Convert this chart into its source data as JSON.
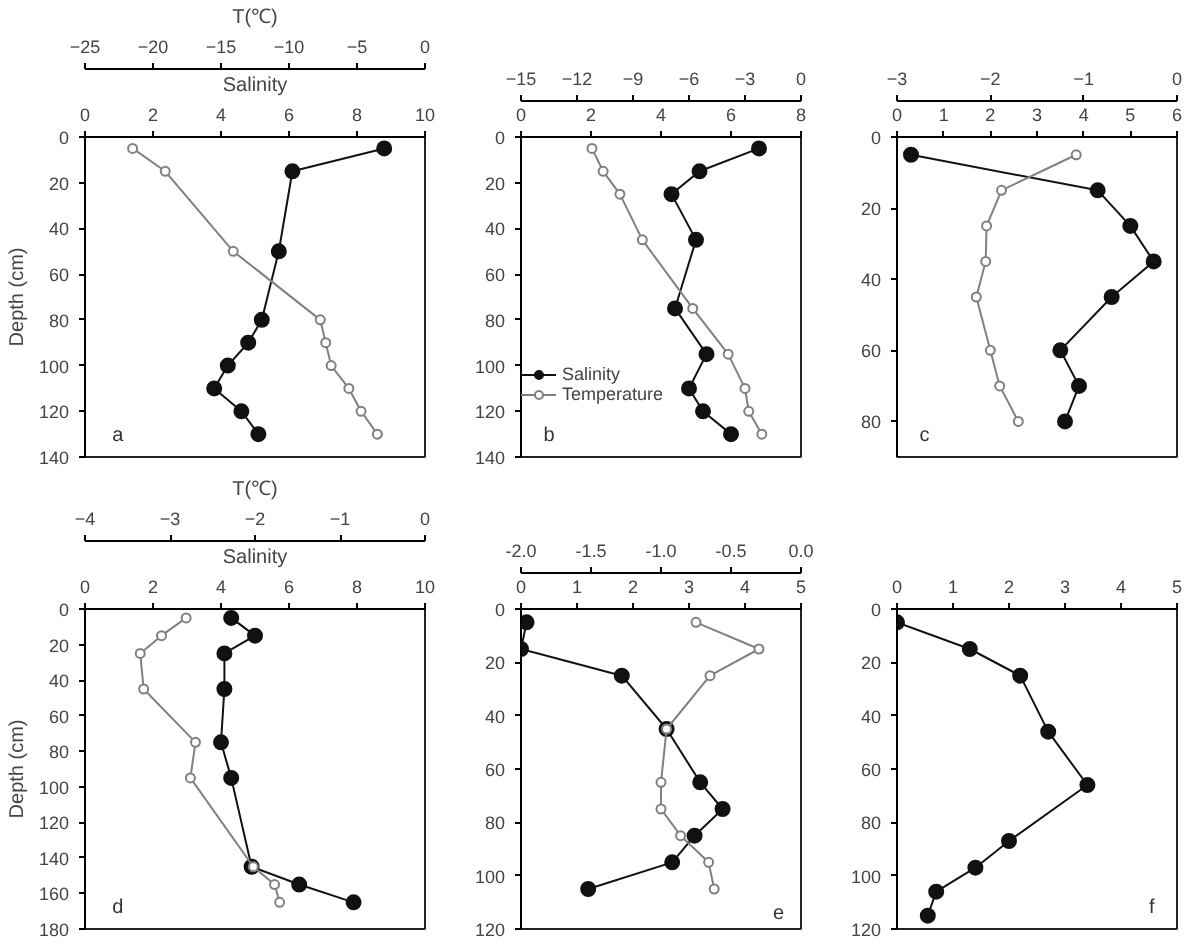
{
  "chart_data": [
    {
      "type": "line",
      "marker": "circle",
      "legend": false,
      "x2label": "T(℃)",
      "xlabel": "Salinity",
      "ylabel": "Depth (cm)",
      "xlim": [
        0,
        10
      ],
      "xticks": [
        0,
        2,
        4,
        6,
        8,
        10
      ],
      "x2lim": [
        -25,
        0
      ],
      "x2ticks": [
        -25,
        -20,
        -15,
        -10,
        -5,
        0
      ],
      "ylim": [
        140,
        0
      ],
      "yticks": [
        0,
        20,
        40,
        60,
        80,
        100,
        120,
        140
      ],
      "annotations": [
        "a"
      ],
      "series": [
        {
          "color": "#111111",
          "x": [
            8.8,
            6.1,
            5.7,
            5.2,
            4.8,
            4.2,
            3.8,
            4.6,
            5.1
          ],
          "values": [
            5,
            15,
            50,
            80,
            90,
            100,
            110,
            120,
            130
          ]
        },
        {
          "color": "#808080",
          "axis": "x2",
          "x": [
            -21.5,
            -19.1,
            -14.1,
            -7.7,
            -7.3,
            -6.9,
            -5.6,
            -4.7,
            -3.5
          ],
          "values": [
            5,
            15,
            50,
            80,
            90,
            100,
            110,
            120,
            130
          ]
        }
      ]
    },
    {
      "type": "line",
      "marker": "circle",
      "legend": "bottom left",
      "xlim": [
        0,
        8
      ],
      "xticks": [
        0,
        2,
        4,
        6,
        8
      ],
      "x2lim": [
        -15,
        0
      ],
      "x2ticks": [
        -15,
        -12,
        -9,
        -6,
        -3,
        0
      ],
      "ylim": [
        140,
        0
      ],
      "yticks": [
        0,
        20,
        40,
        60,
        80,
        100,
        120,
        140
      ],
      "annotations": [
        "b"
      ],
      "series": [
        {
          "name": "Salinity",
          "color": "#111111",
          "x": [
            6.8,
            5.1,
            4.3,
            5.0,
            4.4,
            5.3,
            4.8,
            5.2,
            6.0
          ],
          "values": [
            5,
            15,
            25,
            45,
            75,
            95,
            110,
            120,
            130
          ]
        },
        {
          "name": "Temperature",
          "color": "#808080",
          "axis": "x2",
          "x": [
            -11.2,
            -10.6,
            -9.7,
            -8.5,
            -5.8,
            -3.9,
            -3.0,
            -2.8,
            -2.1
          ],
          "values": [
            5,
            15,
            25,
            45,
            75,
            95,
            110,
            120,
            130
          ]
        }
      ]
    },
    {
      "type": "line",
      "marker": "circle",
      "legend": false,
      "xlim": [
        0,
        6
      ],
      "xticks": [
        0,
        1,
        2,
        3,
        4,
        5,
        6
      ],
      "x2lim": [
        -3,
        0
      ],
      "x2ticks": [
        -3,
        -2,
        -1,
        0
      ],
      "ylim": [
        90,
        0
      ],
      "yticks": [
        0,
        20,
        40,
        60,
        80
      ],
      "annotations": [
        "c"
      ],
      "series": [
        {
          "color": "#111111",
          "x": [
            0.3,
            4.3,
            5.0,
            5.5,
            4.6,
            3.5,
            3.9,
            3.6
          ],
          "values": [
            5,
            15,
            25,
            35,
            45,
            60,
            70,
            80
          ]
        },
        {
          "color": "#808080",
          "axis": "x2",
          "x": [
            -1.08,
            -1.88,
            -2.04,
            -2.05,
            -2.15,
            -2.0,
            -1.9,
            -1.7
          ],
          "values": [
            5,
            15,
            25,
            35,
            45,
            60,
            70,
            80
          ]
        }
      ]
    },
    {
      "type": "line",
      "marker": "circle",
      "legend": false,
      "x2label": "T(℃)",
      "xlabel": "Salinity",
      "ylabel": "Depth (cm)",
      "xlim": [
        0,
        10
      ],
      "xticks": [
        0,
        2,
        4,
        6,
        8,
        10
      ],
      "x2lim": [
        -4,
        0
      ],
      "x2ticks": [
        -4,
        -3,
        -2,
        -1,
        0
      ],
      "ylim": [
        180,
        0
      ],
      "yticks": [
        0,
        20,
        40,
        60,
        80,
        100,
        120,
        140,
        160,
        180
      ],
      "annotations": [
        "d"
      ],
      "series": [
        {
          "color": "#111111",
          "x": [
            4.3,
            5.0,
            4.1,
            4.1,
            4.0,
            4.3,
            4.9,
            6.3,
            7.9
          ],
          "values": [
            5,
            15,
            25,
            45,
            75,
            95,
            145,
            155,
            165
          ]
        },
        {
          "color": "#808080",
          "axis": "x2",
          "x": [
            -2.81,
            -3.1,
            -3.35,
            -3.31,
            -2.7,
            -2.76,
            -2.02,
            -1.77,
            -1.71
          ],
          "values": [
            5,
            15,
            25,
            45,
            75,
            95,
            145,
            155,
            165
          ]
        }
      ]
    },
    {
      "type": "line",
      "marker": "circle",
      "legend": false,
      "xlim": [
        0,
        5
      ],
      "xticks": [
        0,
        1,
        2,
        3,
        4,
        5
      ],
      "x2lim": [
        -2,
        0
      ],
      "x2ticks": [
        {
          "value": -2,
          "label": "-2.0"
        },
        {
          "value": -1.5,
          "label": "-1.5"
        },
        {
          "value": -1,
          "label": "-1.0"
        },
        {
          "value": -0.5,
          "label": "-0.5"
        },
        {
          "value": 0,
          "label": "0.0"
        }
      ],
      "ylim": [
        120,
        0
      ],
      "yticks": [
        0,
        20,
        40,
        60,
        80,
        100,
        120
      ],
      "annotations": [
        "e"
      ],
      "series": [
        {
          "color": "#111111",
          "x": [
            0.1,
            0.0,
            1.8,
            2.6,
            3.2,
            3.6,
            3.1,
            2.7,
            1.2
          ],
          "values": [
            5,
            15,
            25,
            45,
            65,
            75,
            85,
            95,
            105
          ]
        },
        {
          "color": "#808080",
          "axis": "x2",
          "x": [
            -0.75,
            -0.3,
            -0.65,
            -0.96,
            -1.0,
            -1.0,
            -0.86,
            -0.66,
            -0.62
          ],
          "values": [
            5,
            15,
            25,
            45,
            65,
            75,
            85,
            95,
            105
          ]
        }
      ]
    },
    {
      "type": "line",
      "marker": "circle",
      "legend": false,
      "xlim": [
        0,
        5
      ],
      "xticks": [
        0,
        1,
        2,
        3,
        4,
        5
      ],
      "ylim": [
        120,
        0
      ],
      "yticks": [
        0,
        20,
        40,
        60,
        80,
        100,
        120
      ],
      "annotations": [
        "f"
      ],
      "series": [
        {
          "color": "#111111",
          "x": [
            0,
            1.3,
            2.2,
            2.7,
            3.4,
            2.0,
            1.4,
            0.7,
            0.55
          ],
          "values": [
            5,
            15,
            25,
            46,
            66,
            87,
            97,
            106,
            115
          ]
        }
      ]
    }
  ]
}
